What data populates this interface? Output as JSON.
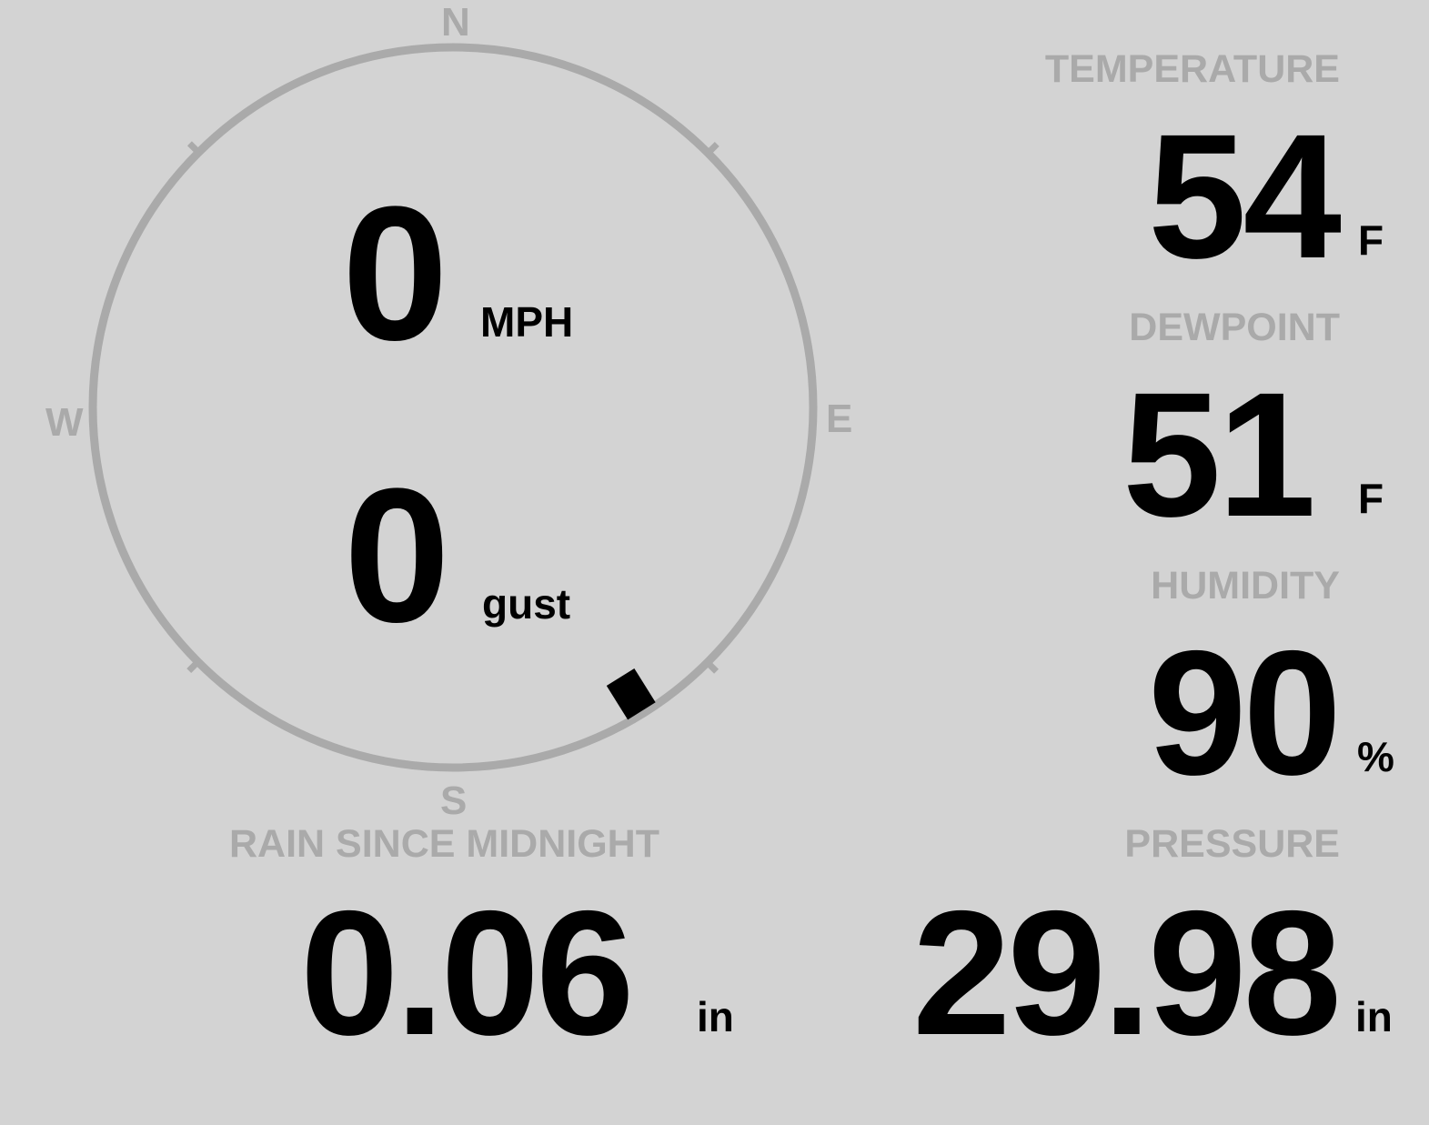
{
  "wind": {
    "compass": {
      "n": "N",
      "e": "E",
      "s": "S",
      "w": "W"
    },
    "speed": "0",
    "speed_unit": "MPH",
    "gust": "0",
    "gust_unit": "gust",
    "direction_deg": 148,
    "ring_color": "#aaaaaa",
    "indicator_color": "#000000"
  },
  "temperature": {
    "label": "TEMPERATURE",
    "value": "54",
    "unit": "F"
  },
  "dewpoint": {
    "label": "DEWPOINT",
    "value": "51",
    "unit": "F"
  },
  "humidity": {
    "label": "HUMIDITY",
    "value": "90",
    "unit": "%"
  },
  "rain": {
    "label": "RAIN SINCE MIDNIGHT",
    "value": "0.06",
    "unit": "in"
  },
  "pressure": {
    "label": "PRESSURE",
    "value": "29.98",
    "unit": "in"
  }
}
